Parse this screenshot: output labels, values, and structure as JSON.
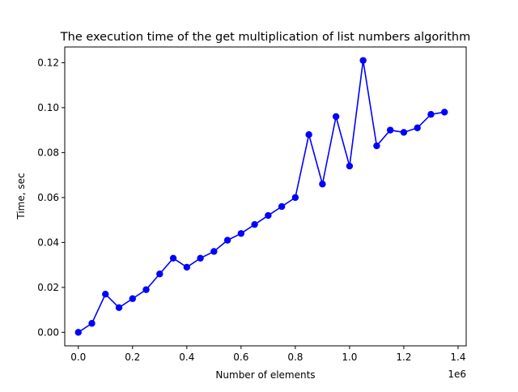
{
  "chart_data": {
    "type": "line",
    "title": "The execution time of the get multiplication of list numbers algorithm",
    "xlabel": "Number of elements",
    "ylabel": "Time, sec",
    "x_offset_label": "1e6",
    "xlim": [
      -50000,
      1430000
    ],
    "ylim": [
      -0.006,
      0.127
    ],
    "x_ticks": [
      0,
      200000,
      400000,
      600000,
      800000,
      1000000,
      1200000,
      1400000
    ],
    "x_tick_labels": [
      "0.0",
      "0.2",
      "0.4",
      "0.6",
      "0.8",
      "1.0",
      "1.2",
      "1.4"
    ],
    "y_ticks": [
      0.0,
      0.02,
      0.04,
      0.06,
      0.08,
      0.1,
      0.12
    ],
    "y_tick_labels": [
      "0.00",
      "0.02",
      "0.04",
      "0.06",
      "0.08",
      "0.10",
      "0.12"
    ],
    "grid": false,
    "series": [
      {
        "color": "#0000ff",
        "marker": "circle",
        "x": [
          0,
          50000,
          100000,
          150000,
          200000,
          250000,
          300000,
          350000,
          400000,
          450000,
          500000,
          550000,
          600000,
          650000,
          700000,
          750000,
          800000,
          850000,
          900000,
          950000,
          1000000,
          1050000,
          1100000,
          1150000,
          1200000,
          1250000,
          1300000,
          1350000
        ],
        "y": [
          0.0,
          0.004,
          0.017,
          0.011,
          0.015,
          0.019,
          0.026,
          0.033,
          0.029,
          0.033,
          0.036,
          0.041,
          0.044,
          0.048,
          0.052,
          0.056,
          0.06,
          0.088,
          0.066,
          0.096,
          0.074,
          0.121,
          0.083,
          0.09,
          0.089,
          0.091,
          0.097,
          0.098
        ]
      }
    ]
  }
}
